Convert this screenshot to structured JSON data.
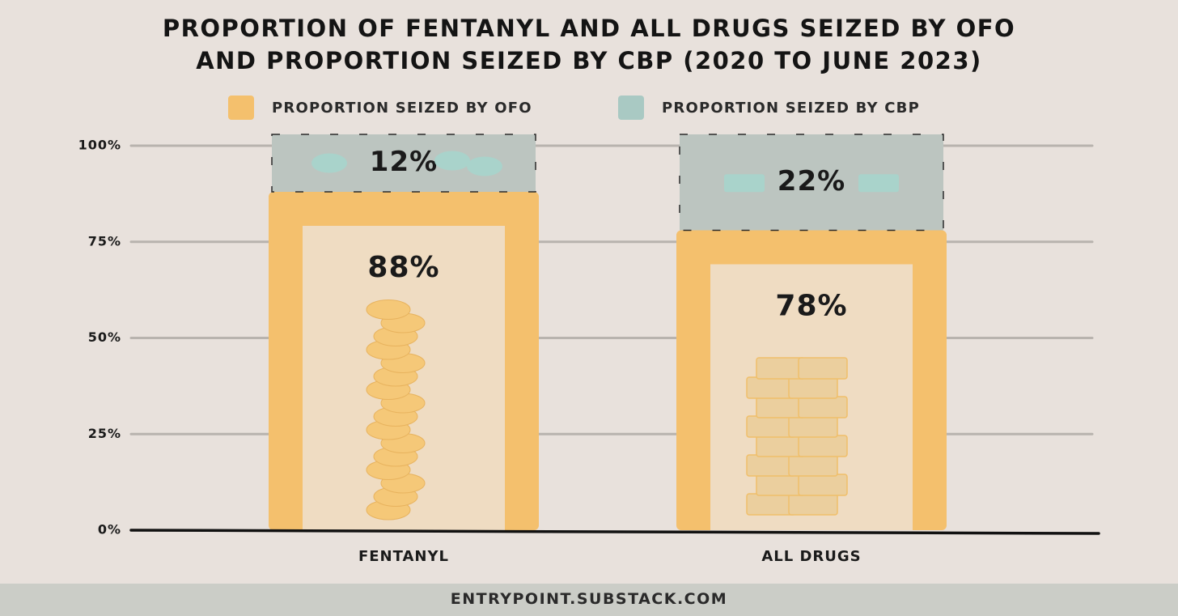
{
  "title_lines": [
    "PROPORTION OF FENTANYL AND ALL DRUGS SEIZED BY OFO",
    "AND PROPORTION SEIZED BY CBP (2020 TO JUNE 2023)"
  ],
  "footer": "ENTRYPOINT.SUBSTACK.COM",
  "colors": {
    "background": "#e8e1dc",
    "ofo": "#f4c06d",
    "ofo_inner": "#efdcc2",
    "cbp": "#bcc5c0",
    "cbp_icon": "#a9d3cb",
    "ofo_icon": "#f5c878",
    "text": "#1a1a1a",
    "gridline": "#b8b3ae",
    "footer_band": "#cbcdc7"
  },
  "chart_data": {
    "type": "bar",
    "stacked": true,
    "categories": [
      "FENTANYL",
      "ALL DRUGS"
    ],
    "series": [
      {
        "name": "PROPORTION SEIZED BY OFO",
        "values": [
          88,
          78
        ],
        "labels": [
          "88%",
          "78%"
        ],
        "color": "#f4c06d",
        "icon": "pill-stack-icon"
      },
      {
        "name": "PROPORTION SEIZED BY CBP",
        "values": [
          12,
          22
        ],
        "labels": [
          "12%",
          "22%"
        ],
        "color": "#bcc5c0",
        "icon": "brick-package-icon"
      }
    ],
    "ylim": [
      0,
      100
    ],
    "yticks": [
      0,
      25,
      50,
      75,
      100
    ],
    "ytick_labels": [
      "0%",
      "25%",
      "50%",
      "75%",
      "100%"
    ],
    "grid": true,
    "legend": "top"
  }
}
